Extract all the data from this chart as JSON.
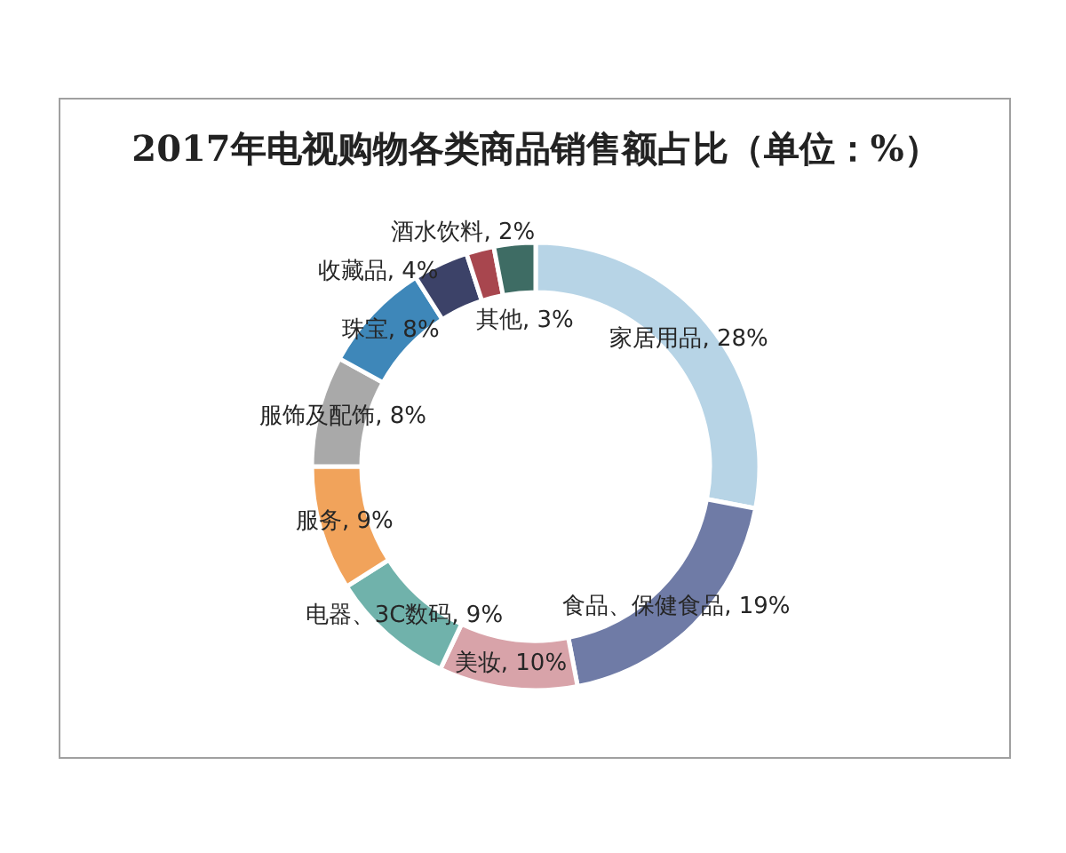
{
  "chart_data": {
    "type": "donut",
    "title": "2017年电视购物各类商品销售额占比（单位：%）",
    "categories": [
      "家居用品",
      "食品、保健食品",
      "美妆",
      "电器、3C数码",
      "服务",
      "服饰及配饰",
      "珠宝",
      "收藏品",
      "酒水饮料",
      "其他"
    ],
    "values": [
      28,
      19,
      10,
      9,
      9,
      8,
      8,
      4,
      2,
      3
    ],
    "colors": [
      "#b7d4e6",
      "#6f7ba6",
      "#d8a3a9",
      "#70b2ab",
      "#f1a35b",
      "#a9a9a9",
      "#3e87b9",
      "#3c4268",
      "#a8464e",
      "#3e6c64"
    ],
    "value_labels": [
      "28%",
      "19%",
      "10%",
      "9%",
      "9%",
      "8%",
      "8%",
      "4%",
      "2%",
      "3%"
    ]
  }
}
